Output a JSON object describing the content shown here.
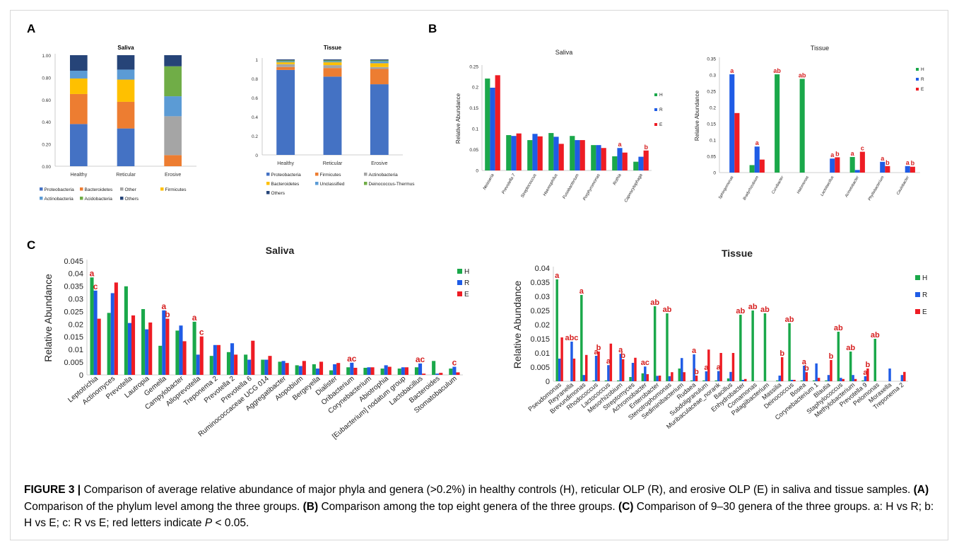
{
  "panel_letters": {
    "a": "A",
    "b": "B",
    "c": "C"
  },
  "colors": {
    "H": "#1aa84a",
    "R": "#1f5ce6",
    "E": "#ee1c24",
    "sig": "#d62020",
    "Proteobacteria": "#4472c4",
    "Bacteroidetes": "#ed7d31",
    "Other": "#a5a5a5",
    "Firmicutes": "#ffc000",
    "Actinobacteria": "#5b9bd5",
    "Acidobacteria": "#70ad47",
    "Others": "#264478",
    "Unclassified": "#5b9bd5",
    "Deinococcus-Thermus": "#70ad47"
  },
  "caption": {
    "label": "FIGURE 3 |",
    "text1": " Comparison of average relative abundance of major phyla and genera (>0.2%) in healthy controls (H), reticular OLP (R), and erosive OLP (E) in saliva and tissue samples. ",
    "a_label": "(A)",
    "a_text": " Comparison of the phylum level among the three groups. ",
    "b_label": "(B)",
    "b_text": " Comparison among the top eight genera of the three groups. ",
    "c_label": "(C)",
    "c_text": " Comparison of 9–30 genera of the three groups. a: H vs R; b: H vs E; c: R vs E; red letters indicate ",
    "p_text": "P",
    "end_text": " < 0.05."
  },
  "chart_data": [
    {
      "id": "A-saliva",
      "type": "bar",
      "stacked": true,
      "title": "Saliva",
      "categories": [
        "Healthy",
        "Reticular",
        "Erosive"
      ],
      "ylim": [
        0,
        1
      ],
      "yticks": [
        "0.00",
        "0.20",
        "0.40",
        "0.60",
        "0.80",
        "1.00"
      ],
      "series": [
        {
          "name": "Proteobacteria",
          "color": "#4472c4",
          "values": [
            0.38,
            0.34,
            0.0
          ]
        },
        {
          "name": "Bacteroidetes",
          "color": "#ed7d31",
          "values": [
            0.27,
            0.24,
            0.1
          ]
        },
        {
          "name": "Other",
          "color": "#a5a5a5",
          "values": [
            0.0,
            0.0,
            0.35
          ]
        },
        {
          "name": "Firmicutes",
          "color": "#ffc000",
          "values": [
            0.14,
            0.2,
            0.0
          ]
        },
        {
          "name": "Actinobacteria",
          "color": "#5b9bd5",
          "values": [
            0.07,
            0.09,
            0.18
          ]
        },
        {
          "name": "Acidobacteria",
          "color": "#70ad47",
          "values": [
            0.0,
            0.0,
            0.27
          ]
        },
        {
          "name": "Others",
          "color": "#264478",
          "values": [
            0.14,
            0.13,
            0.1
          ]
        }
      ],
      "legend": [
        "Proteobacteria",
        "Bacteroidetes",
        "Other",
        "Firmicutes",
        "Actinobacteria",
        "Acidobacteria",
        "Others"
      ],
      "legend_position": "bottom"
    },
    {
      "id": "A-tissue",
      "type": "bar",
      "stacked": true,
      "title": "Tissue",
      "categories": [
        "Healthy",
        "Reticular",
        "Erosive"
      ],
      "ylim": [
        0,
        1
      ],
      "yticks": [
        "0",
        "0.2",
        "0.4",
        "0.6",
        "0.8",
        "1"
      ],
      "series": [
        {
          "name": "Proteobacteria",
          "color": "#4472c4",
          "values": [
            0.89,
            0.82,
            0.74
          ]
        },
        {
          "name": "Firmicutes",
          "color": "#ed7d31",
          "values": [
            0.03,
            0.09,
            0.16
          ]
        },
        {
          "name": "Actinobacteria",
          "color": "#a5a5a5",
          "values": [
            0.03,
            0.03,
            0.02
          ]
        },
        {
          "name": "Bacteroidetes",
          "color": "#ffc000",
          "values": [
            0.02,
            0.03,
            0.04
          ]
        },
        {
          "name": "Unclassified",
          "color": "#5b9bd5",
          "values": [
            0.01,
            0.01,
            0.02
          ]
        },
        {
          "name": "Deinococcus-Thermus",
          "color": "#70ad47",
          "values": [
            0.01,
            0.01,
            0.01
          ]
        },
        {
          "name": "Others",
          "color": "#264478",
          "values": [
            0.01,
            0.01,
            0.01
          ]
        }
      ],
      "legend": [
        "Proteobacteria",
        "Firmicutes",
        "Actinobacteria",
        "Bacteroidetes",
        "Unclassified",
        "Deinococcus-Thermus",
        "Others"
      ],
      "legend_position": "bottom"
    },
    {
      "id": "B-saliva",
      "type": "bar",
      "title": "Saliva",
      "ylabel": "Relative Abundance",
      "categories": [
        "Neisseria",
        "Prevotella 7",
        "Streptococcus",
        "Haemophilus",
        "Fusobacterium",
        "Porphyromonas",
        "Rothia",
        "Capnocytophaga"
      ],
      "ylim": [
        0,
        0.25
      ],
      "yticks": [
        "0",
        "0.05",
        "0.1",
        "0.15",
        "0.2",
        "0.25"
      ],
      "series": [
        {
          "name": "H",
          "values": [
            0.221,
            0.085,
            0.073,
            0.09,
            0.083,
            0.061,
            0.034,
            0.021
          ]
        },
        {
          "name": "R",
          "values": [
            0.199,
            0.083,
            0.088,
            0.081,
            0.073,
            0.061,
            0.054,
            0.033
          ]
        },
        {
          "name": "E",
          "values": [
            0.229,
            0.089,
            0.082,
            0.064,
            0.073,
            0.054,
            0.043,
            0.048
          ]
        }
      ],
      "annotations": [
        {
          "category": 6,
          "series": 1,
          "text": "a"
        },
        {
          "category": 7,
          "series": 2,
          "text": "b"
        }
      ],
      "legend": [
        "H",
        "R",
        "E"
      ],
      "legend_position": "right"
    },
    {
      "id": "B-tissue",
      "type": "bar",
      "title": "Tissue",
      "ylabel": "Relative Abundance",
      "categories": [
        "Sphingomonas",
        "Bradyrhizobium",
        "Curvibacter",
        "Halomonas",
        "Lactobacillus",
        "Acinetobacter",
        "Phyllobacterium",
        "Caulobacter"
      ],
      "ylim": [
        0,
        0.35
      ],
      "yticks": [
        "0",
        "0.05",
        "0.1",
        "0.15",
        "0.2",
        "0.25",
        "0.3",
        "0.35"
      ],
      "series": [
        {
          "name": "H",
          "values": [
            0.0,
            0.023,
            0.302,
            0.288,
            0.0,
            0.048,
            0.0,
            0.0
          ]
        },
        {
          "name": "R",
          "values": [
            0.302,
            0.08,
            0.0,
            0.0,
            0.043,
            0.008,
            0.033,
            0.02
          ]
        },
        {
          "name": "E",
          "values": [
            0.183,
            0.04,
            0.0,
            0.0,
            0.047,
            0.064,
            0.02,
            0.018
          ]
        }
      ],
      "annotations": [
        {
          "category": 0,
          "series": 1,
          "text": "a"
        },
        {
          "category": 1,
          "series": 1,
          "text": "a"
        },
        {
          "category": 2,
          "series": 0,
          "text": "ab"
        },
        {
          "category": 3,
          "series": 0,
          "text": "ab"
        },
        {
          "category": 4,
          "series": 1,
          "text": "a"
        },
        {
          "category": 4,
          "series": 2,
          "text": "b"
        },
        {
          "category": 5,
          "series": 0,
          "text": "a"
        },
        {
          "category": 5,
          "series": 2,
          "text": "c"
        },
        {
          "category": 6,
          "series": 1,
          "text": "a"
        },
        {
          "category": 6,
          "series": 2,
          "text": "b"
        },
        {
          "category": 7,
          "series": 1,
          "text": "a"
        },
        {
          "category": 7,
          "series": 2,
          "text": "b"
        }
      ],
      "legend": [
        "H",
        "R",
        "E"
      ],
      "legend_position": "right"
    },
    {
      "id": "C-saliva",
      "type": "bar",
      "title": "Saliva",
      "ylabel": "Relative Abundance",
      "categories": [
        "Leptotrichia",
        "Actinomyces",
        "Prevotella",
        "Lautropia",
        "Gemella",
        "Campylobacter",
        "Alloprevotella",
        "Treponema 2",
        "Prevotella 2",
        "Prevotella 6",
        "Ruminococcaceae UCG 014",
        "Aggregatibacter",
        "Atopobium",
        "Bergeyella",
        "Dialister",
        "Oribacterium",
        "Corynebacterium",
        "Abiotrophia",
        "[Eubacterium] nodatum group",
        "Lactobacillus",
        "Bacteroides",
        "Stomatobaculum"
      ],
      "ylim": [
        0,
        0.045
      ],
      "yticks": [
        "0",
        "0.005",
        "0.01",
        "0.015",
        "0.02",
        "0.025",
        "0.03",
        "0.035",
        "0.04",
        "0.045"
      ],
      "series": [
        {
          "name": "H",
          "values": [
            0.0385,
            0.0245,
            0.035,
            0.026,
            0.0115,
            0.0175,
            0.021,
            0.0075,
            0.009,
            0.008,
            0.006,
            0.0052,
            0.0038,
            0.0042,
            0.0018,
            0.003,
            0.0028,
            0.0025,
            0.0025,
            0.003,
            0.0055,
            0.0025
          ]
        },
        {
          "name": "R",
          "values": [
            0.0333,
            0.0323,
            0.0205,
            0.018,
            0.0255,
            0.0195,
            0.008,
            0.0118,
            0.0125,
            0.006,
            0.006,
            0.0055,
            0.0035,
            0.0025,
            0.0042,
            0.0048,
            0.003,
            0.0038,
            0.003,
            0.0045,
            0.0005,
            0.0032
          ]
        },
        {
          "name": "E",
          "values": [
            0.0222,
            0.0365,
            0.0235,
            0.0207,
            0.0222,
            0.0133,
            0.0152,
            0.0118,
            0.008,
            0.0135,
            0.0075,
            0.0047,
            0.0055,
            0.0052,
            0.0047,
            0.0028,
            0.003,
            0.0032,
            0.003,
            0.0005,
            0.0008,
            0.001
          ]
        }
      ],
      "annotations": [
        {
          "category": 0,
          "series": 0,
          "text": "a"
        },
        {
          "category": 0,
          "series": 1,
          "text": "c"
        },
        {
          "category": 4,
          "series": 1,
          "text": "a"
        },
        {
          "category": 4,
          "series": 2,
          "text": "b"
        },
        {
          "category": 6,
          "series": 0,
          "text": "a"
        },
        {
          "category": 6,
          "series": 2,
          "text": "c"
        },
        {
          "category": 15,
          "series": 1,
          "text": "ac"
        },
        {
          "category": 19,
          "series": 1,
          "text": "ac"
        },
        {
          "category": 21,
          "series": 1,
          "text": "c"
        }
      ],
      "legend": [
        "H",
        "R",
        "E"
      ],
      "legend_position": "right"
    },
    {
      "id": "C-tissue",
      "type": "bar",
      "title": "Tissue",
      "ylabel": "Relative Abundance",
      "categories": [
        "Pseudomonas",
        "Reyranella",
        "Brevundimonas",
        "Rhodococcus",
        "Lactococcus",
        "Mesorhizobium",
        "Streptomyces",
        "Achromobacter",
        "Enterobacter",
        "Stenotrophomonas",
        "Sediminibacterium",
        "Rudaea",
        "Subdoligranulum",
        "Muribaculaceae_norank",
        "Bacillus",
        "Enhydrobacter",
        "Comamonas",
        "Palagiibacterium",
        "Massilia",
        "Deinococcus",
        "Bosea",
        "Corynebacterium 1",
        "Blautia",
        "Staphylococcus",
        "Methylobacterium",
        "Prevotella 9",
        "Pelomonas",
        "Moraxella",
        "Treponema 2"
      ],
      "ylim": [
        0,
        0.04
      ],
      "yticks": [
        "0",
        "0.005",
        "0.01",
        "0.015",
        "0.02",
        "0.025",
        "0.03",
        "0.035",
        "0.04"
      ],
      "series": [
        {
          "name": "H",
          "values": [
            0.036,
            0.0,
            0.0305,
            0.0003,
            0.0003,
            0.0003,
            0.0015,
            0.0028,
            0.0265,
            0.024,
            0.0045,
            0.0003,
            0.0003,
            0.0003,
            0.001,
            0.0235,
            0.025,
            0.024,
            0.0003,
            0.0205,
            0.0003,
            0.0003,
            0.0003,
            0.0175,
            0.0105,
            0.0003,
            0.015,
            0.0,
            0.0
          ]
        },
        {
          "name": "R",
          "values": [
            0.008,
            0.014,
            0.0022,
            0.009,
            0.0057,
            0.0097,
            0.0065,
            0.0052,
            0.0019,
            0.0018,
            0.0082,
            0.0095,
            0.0035,
            0.0036,
            0.0033,
            0.0005,
            0.0,
            0.0,
            0.002,
            0.0005,
            0.0055,
            0.0063,
            0.0022,
            0.0012,
            0.0022,
            0.0018,
            0.0,
            0.0045,
            0.0022
          ]
        },
        {
          "name": "E",
          "values": [
            0.0155,
            0.008,
            0.0093,
            0.0105,
            0.0133,
            0.0078,
            0.0083,
            0.0025,
            0.002,
            0.0032,
            0.0032,
            0.002,
            0.0112,
            0.01,
            0.01,
            0.0008,
            0.0,
            0.0,
            0.0085,
            0.0005,
            0.0032,
            0.0012,
            0.0075,
            0.0008,
            0.0008,
            0.0045,
            0.0,
            0.0,
            0.0033
          ]
        }
      ],
      "annotations": [
        {
          "category": 0,
          "series": 0,
          "text": "a"
        },
        {
          "category": 1,
          "series": 1,
          "text": "abc"
        },
        {
          "category": 2,
          "series": 0,
          "text": "a"
        },
        {
          "category": 3,
          "series": 1,
          "text": "a"
        },
        {
          "category": 3,
          "series": 2,
          "text": "b"
        },
        {
          "category": 4,
          "series": 1,
          "text": "a"
        },
        {
          "category": 5,
          "series": 1,
          "text": "a"
        },
        {
          "category": 5,
          "series": 2,
          "text": "b"
        },
        {
          "category": 7,
          "series": 1,
          "text": "ac"
        },
        {
          "category": 8,
          "series": 0,
          "text": "ab"
        },
        {
          "category": 9,
          "series": 0,
          "text": "ab"
        },
        {
          "category": 11,
          "series": 1,
          "text": "a"
        },
        {
          "category": 11,
          "series": 2,
          "text": "b"
        },
        {
          "category": 12,
          "series": 1,
          "text": "a"
        },
        {
          "category": 13,
          "series": 1,
          "text": "a"
        },
        {
          "category": 15,
          "series": 0,
          "text": "ab"
        },
        {
          "category": 16,
          "series": 0,
          "text": "ab"
        },
        {
          "category": 17,
          "series": 0,
          "text": "ab"
        },
        {
          "category": 18,
          "series": 2,
          "text": "b"
        },
        {
          "category": 19,
          "series": 0,
          "text": "ab"
        },
        {
          "category": 20,
          "series": 1,
          "text": "a"
        },
        {
          "category": 20,
          "series": 2,
          "text": "b"
        },
        {
          "category": 22,
          "series": 2,
          "text": "b"
        },
        {
          "category": 23,
          "series": 0,
          "text": "ab"
        },
        {
          "category": 24,
          "series": 0,
          "text": "ab"
        },
        {
          "category": 25,
          "series": 1,
          "text": "a"
        },
        {
          "category": 25,
          "series": 2,
          "text": "b"
        },
        {
          "category": 26,
          "series": 0,
          "text": "ab"
        }
      ],
      "legend": [
        "H",
        "R",
        "E"
      ],
      "legend_position": "right"
    }
  ]
}
